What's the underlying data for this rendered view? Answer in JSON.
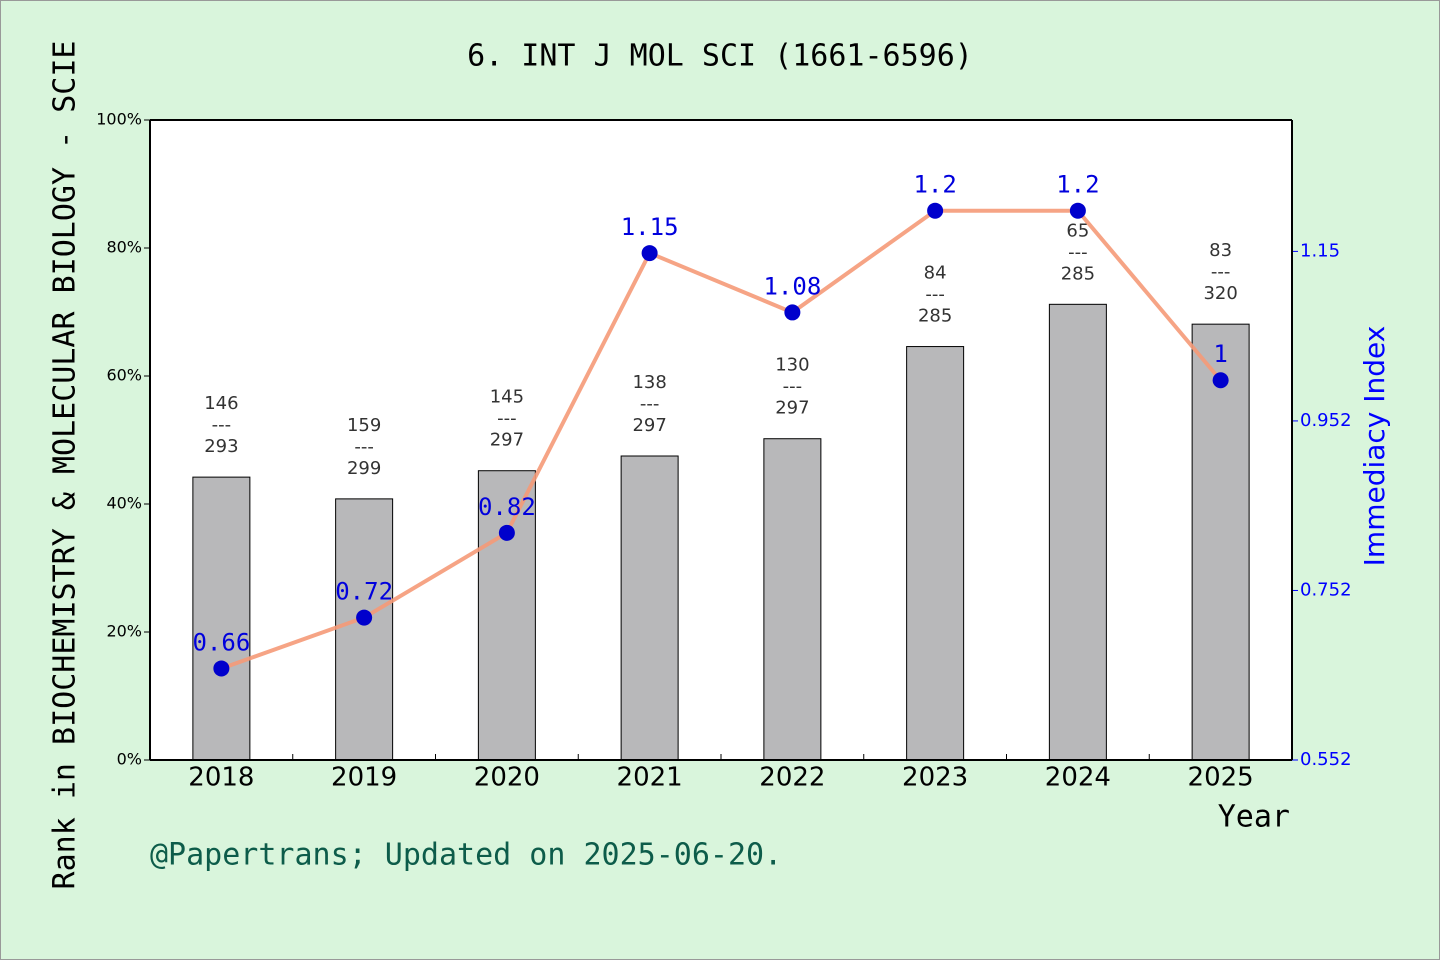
{
  "chart_data": {
    "type": "bar_line",
    "title": "6. INT J MOL SCI (1661-6596)",
    "y_label": "Rank in BIOCHEMISTRY & MOLECULAR BIOLOGY - SCIE",
    "y2_label": "Immediacy Index",
    "x_label": "Year",
    "footer": "@Papertrans; Updated on 2025-06-20.",
    "categories": [
      "2018",
      "2019",
      "2020",
      "2021",
      "2022",
      "2023",
      "2024",
      "2025"
    ],
    "series": [
      {
        "name": "Rank",
        "type": "bar",
        "color": "#b8b8ba",
        "values": [
          44.2,
          40.8,
          45.2,
          47.5,
          50.2,
          64.6,
          71.2,
          68.1
        ],
        "rank_labels": [
          [
            "146",
            "---",
            "293"
          ],
          [
            "159",
            "---",
            "299"
          ],
          [
            "145",
            "---",
            "297"
          ],
          [
            "138",
            "---",
            "297"
          ],
          [
            "130",
            "---",
            "297"
          ],
          [
            "84",
            "---",
            "285"
          ],
          [
            "65",
            "---",
            "285"
          ],
          [
            "83",
            "---",
            "320"
          ]
        ]
      },
      {
        "name": "Immediacy Index",
        "type": "line",
        "axis": "y2",
        "color": "#f59a78",
        "marker_color": "#0000cc",
        "values": [
          0.66,
          0.72,
          0.82,
          1.15,
          1.08,
          1.2,
          1.2,
          1
        ]
      }
    ],
    "ylim": [
      0,
      100
    ],
    "yticks": [
      {
        "value": 0,
        "label": "0%"
      },
      {
        "value": 20,
        "label": "20%"
      },
      {
        "value": 40,
        "label": "40%"
      },
      {
        "value": 60,
        "label": "60%"
      },
      {
        "value": 80,
        "label": "80%"
      },
      {
        "value": 100,
        "label": "100%"
      }
    ],
    "y2lim": [
      0.552,
      1.307
    ],
    "y2ticks": [
      0.552,
      0.752,
      0.952,
      {
        "value": 1.152,
        "label": "1.15"
      }
    ]
  }
}
